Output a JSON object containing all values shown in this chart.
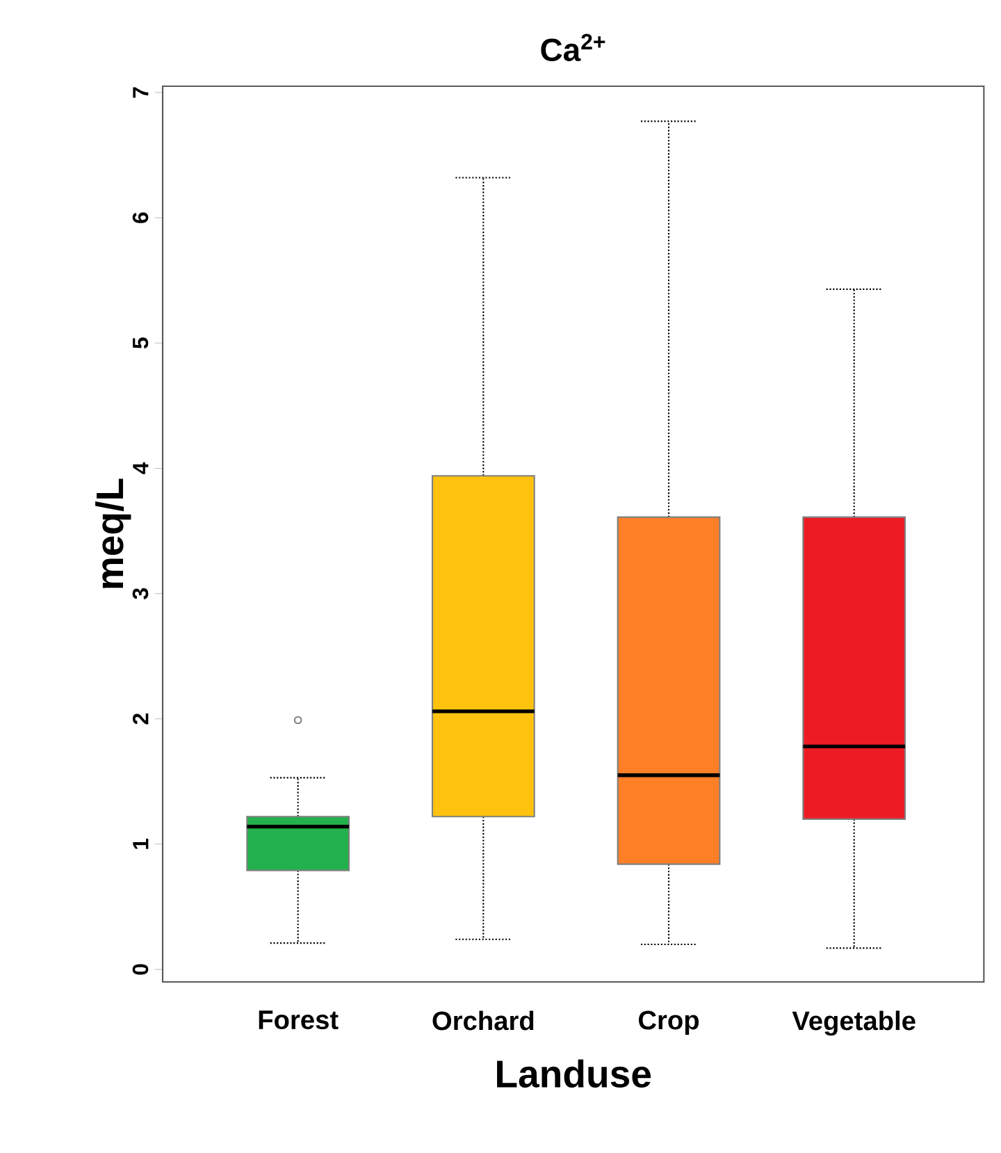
{
  "chart_data": {
    "type": "box",
    "title": "Ca$^{2+}$",
    "xlabel": "Landuse",
    "ylabel": "meq/L",
    "categories": [
      "Forest",
      "Orchard",
      "Crop",
      "Vegetable"
    ],
    "colors": [
      "#22b14c",
      "#ffc20e",
      "#ff7f27",
      "#ed1c24"
    ],
    "boxes": [
      {
        "low": 0.21,
        "q1": 0.79,
        "median": 1.14,
        "q3": 1.22,
        "high": 1.53,
        "outliers": [
          1.99
        ]
      },
      {
        "low": 0.24,
        "q1": 1.22,
        "median": 2.06,
        "q3": 3.94,
        "high": 6.32
      },
      {
        "low": 0.2,
        "q1": 0.84,
        "median": 1.55,
        "q3": 3.61,
        "high": 6.77
      },
      {
        "low": 0.17,
        "q1": 1.2,
        "median": 1.78,
        "q3": 3.61,
        "high": 5.43
      }
    ],
    "ylim": [
      -0.1,
      7.05
    ],
    "yticks": [
      0,
      1,
      2,
      3,
      4,
      5,
      6,
      7
    ],
    "line_style": "dotted"
  }
}
